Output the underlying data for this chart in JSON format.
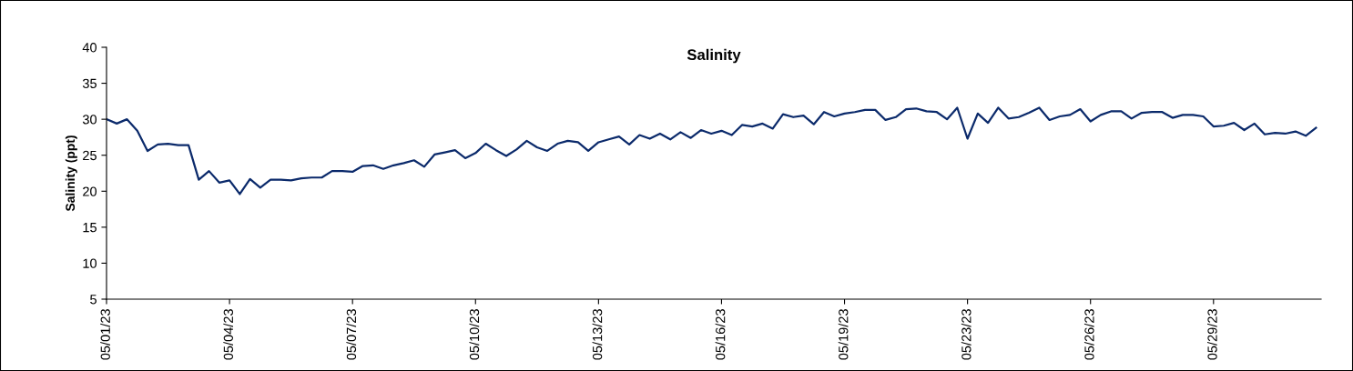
{
  "chart_data": {
    "type": "line",
    "title": "Salinity",
    "ylabel": "Salinity (ppt)",
    "categories": [
      "05/01/23",
      null,
      null,
      null,
      null,
      null,
      null,
      null,
      null,
      null,
      null,
      null,
      "05/04/23",
      null,
      null,
      null,
      null,
      null,
      null,
      null,
      null,
      null,
      null,
      null,
      "05/07/23",
      null,
      null,
      null,
      null,
      null,
      null,
      null,
      null,
      null,
      null,
      null,
      "05/10/23",
      null,
      null,
      null,
      null,
      null,
      null,
      null,
      null,
      null,
      null,
      null,
      "05/13/23",
      null,
      null,
      null,
      null,
      null,
      null,
      null,
      null,
      null,
      null,
      null,
      "05/16/23",
      null,
      null,
      null,
      null,
      null,
      null,
      null,
      null,
      null,
      null,
      null,
      "05/19/23",
      null,
      null,
      null,
      null,
      null,
      null,
      null,
      null,
      null,
      null,
      null,
      "05/23/23",
      null,
      null,
      null,
      null,
      null,
      null,
      null,
      null,
      null,
      null,
      null,
      "05/26/23",
      null,
      null,
      null,
      null,
      null,
      null,
      null,
      null,
      null,
      null,
      null,
      "05/29/23",
      null,
      null,
      null,
      null,
      null,
      null,
      null,
      null,
      null,
      null
    ],
    "series": [
      {
        "color": "#0b2a6b",
        "values": [
          30.0,
          29.4,
          30.0,
          28.4,
          25.6,
          26.5,
          26.6,
          26.4,
          26.4,
          21.6,
          22.8,
          21.2,
          21.5,
          19.6,
          21.7,
          20.5,
          21.6,
          21.6,
          21.5,
          21.8,
          21.9,
          21.9,
          22.8,
          22.8,
          22.7,
          23.5,
          23.6,
          23.1,
          23.6,
          23.9,
          24.3,
          23.4,
          25.1,
          25.4,
          25.7,
          24.6,
          25.3,
          26.6,
          25.7,
          24.9,
          25.8,
          27.0,
          26.1,
          25.6,
          26.6,
          27.0,
          26.8,
          25.6,
          26.8,
          27.2,
          27.6,
          26.5,
          27.8,
          27.3,
          28.0,
          27.2,
          28.2,
          27.4,
          28.5,
          28.0,
          28.4,
          27.8,
          29.2,
          29.0,
          29.4,
          28.7,
          30.7,
          30.3,
          30.5,
          29.3,
          31.0,
          30.4,
          30.8,
          31.0,
          31.3,
          31.3,
          29.9,
          30.3,
          31.4,
          31.5,
          31.1,
          31.0,
          30.0,
          31.6,
          27.3,
          30.8,
          29.5,
          31.6,
          30.1,
          30.3,
          30.9,
          31.6,
          29.9,
          30.4,
          30.6,
          31.4,
          29.7,
          30.6,
          31.1,
          31.1,
          30.1,
          30.9,
          31.0,
          31.0,
          30.2,
          30.6,
          30.6,
          30.4,
          29.0,
          29.1,
          29.5,
          28.5,
          29.4,
          27.9,
          28.1,
          28.0,
          28.3,
          27.7,
          28.8
        ]
      }
    ],
    "ylim": [
      5,
      40
    ],
    "yticks": [
      5,
      10,
      15,
      20,
      25,
      30,
      35,
      40
    ],
    "grid": false,
    "legend": false,
    "marker": "none",
    "line_style": "solid"
  }
}
